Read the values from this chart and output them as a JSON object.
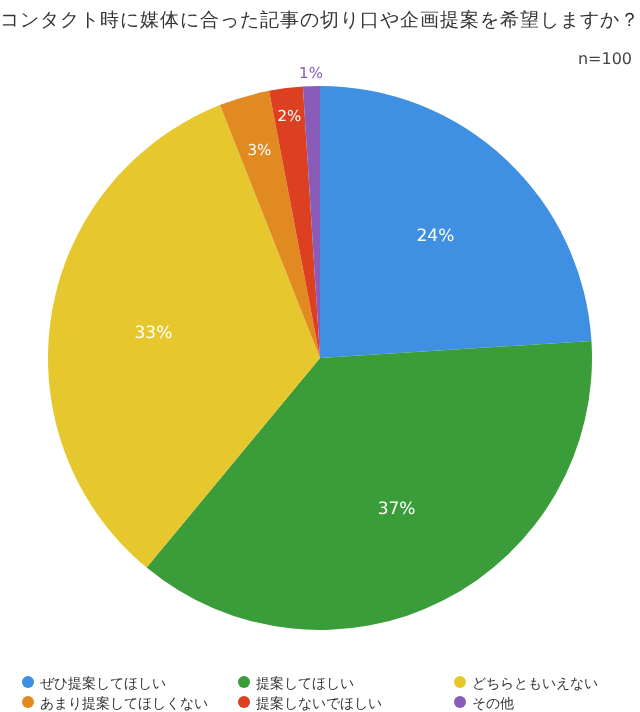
{
  "chart_data": {
    "type": "pie",
    "title": "コンタクト時に媒体に合った記事の切り口や企画提案を希望しますか？",
    "annotations": [
      "n=100"
    ],
    "categories": [
      "ぜひ提案してほしい",
      "提案してほしい",
      "どちらともいえない",
      "あまり提案してほしくない",
      "提案しないでほしい",
      "その他"
    ],
    "values": [
      24,
      37,
      33,
      3,
      2,
      1
    ],
    "colors": [
      "#3f8fe2",
      "#3a9d3a",
      "#e6c82e",
      "#e28a22",
      "#dd4020",
      "#8a5cba"
    ],
    "value_labels": [
      "24%",
      "37%",
      "33%",
      "3%",
      "2%",
      "1%"
    ],
    "legend": "bottom"
  }
}
